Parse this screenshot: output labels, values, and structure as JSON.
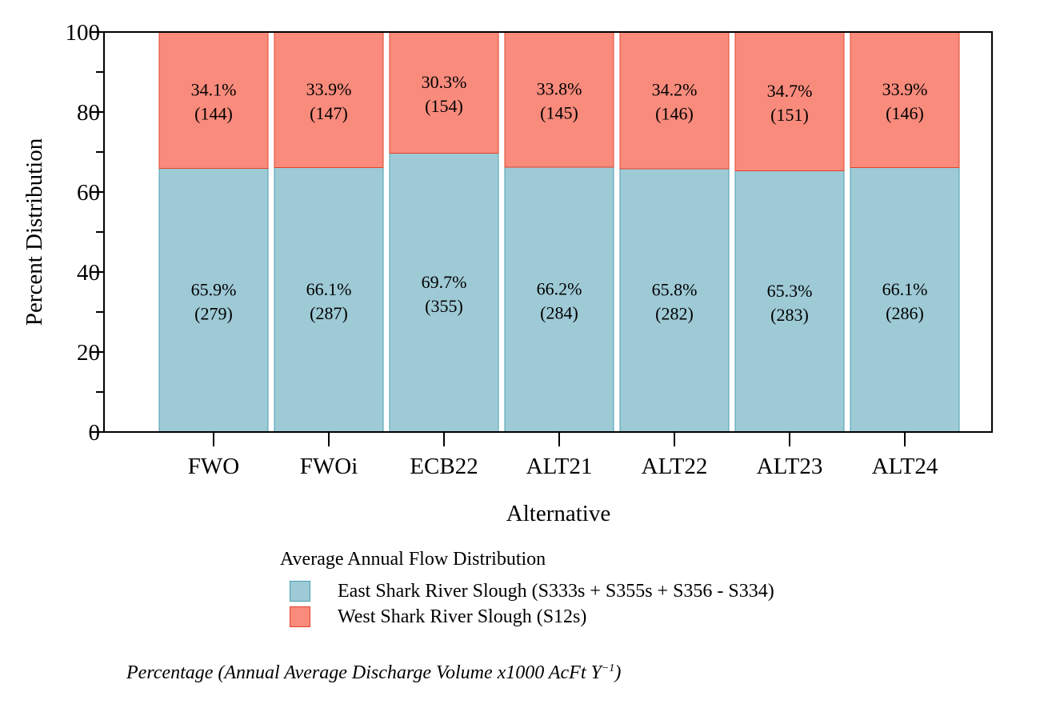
{
  "chart_data": {
    "type": "bar",
    "stacked": true,
    "xlabel": "Alternative",
    "ylabel": "Percent Distribution",
    "ylim": [
      0,
      100
    ],
    "yticks": [
      0,
      20,
      40,
      60,
      80,
      100
    ],
    "categories": [
      "FWO",
      "FWOi",
      "ECB22",
      "ALT21",
      "ALT22",
      "ALT23",
      "ALT24"
    ],
    "series": [
      {
        "name": "East Shark River Slough (S333s + S355s + S356 - S334)",
        "color": "#9ecad6",
        "edge": "#4a9fb0",
        "values": [
          65.9,
          66.1,
          69.7,
          66.2,
          65.8,
          65.3,
          66.1
        ],
        "pct_labels": [
          "65.9%",
          "66.1%",
          "69.7%",
          "66.2%",
          "65.8%",
          "65.3%",
          "66.1%"
        ],
        "volume_labels": [
          "(279)",
          "(287)",
          "(355)",
          "(284)",
          "(282)",
          "(283)",
          "(286)"
        ]
      },
      {
        "name": "West Shark River Slough (S12s)",
        "color": "#f88b7c",
        "edge": "#e0442e",
        "values": [
          34.1,
          33.9,
          30.3,
          33.8,
          34.2,
          34.7,
          33.9
        ],
        "pct_labels": [
          "34.1%",
          "33.9%",
          "30.3%",
          "33.8%",
          "34.2%",
          "34.7%",
          "33.9%"
        ],
        "volume_labels": [
          "(144)",
          "(147)",
          "(154)",
          "(145)",
          "(146)",
          "(151)",
          "(146)"
        ]
      }
    ],
    "legend_title": "Average Annual Flow Distribution",
    "caption": "Percentage (Annual Average Discharge Volume x1000 AcFt Y",
    "caption_sup": "−1",
    "caption_end": ")"
  }
}
